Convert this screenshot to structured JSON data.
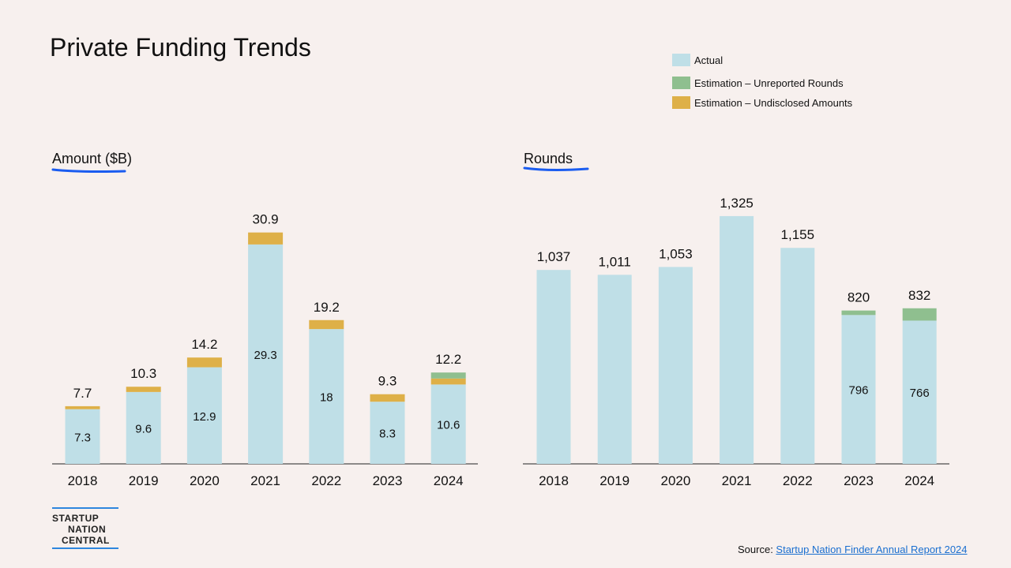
{
  "page_title": "Private Funding Trends",
  "legend": [
    {
      "label": "Actual",
      "color": "#bfdfe7"
    },
    {
      "label": "Estimation – Unreported  Rounds",
      "color": "#8fbf8f"
    },
    {
      "label": "Estimation – Undisclosed Amounts",
      "color": "#deb048"
    }
  ],
  "logo": {
    "line1": "STARTUP",
    "line2": "NATION",
    "line3": "CENTRAL"
  },
  "source": {
    "prefix": "Source: ",
    "link_text": "Startup Nation Finder Annual Report 2024"
  },
  "chart_data": [
    {
      "type": "bar",
      "stacked": true,
      "title": "Amount ($B)",
      "categories": [
        "2018",
        "2019",
        "2020",
        "2021",
        "2022",
        "2023",
        "2024"
      ],
      "series": [
        {
          "name": "Actual",
          "color": "#bfdfe7",
          "values": [
            7.3,
            9.6,
            12.9,
            29.3,
            18,
            8.3,
            10.6
          ]
        },
        {
          "name": "Estimation – Undisclosed Amounts",
          "color": "#deb048",
          "values": [
            0.4,
            0.7,
            1.3,
            1.6,
            1.2,
            1.0,
            0.8
          ]
        },
        {
          "name": "Estimation – Unreported  Rounds",
          "color": "#8fbf8f",
          "values": [
            0,
            0,
            0,
            0,
            0,
            0,
            0.8
          ]
        }
      ],
      "actual_labels": [
        "7.3",
        "9.6",
        "12.9",
        "29.3",
        "18",
        "8.3",
        "10.6"
      ],
      "total_labels": [
        "7.7",
        "10.3",
        "14.2",
        "30.9",
        "19.2",
        "9.3",
        "12.2"
      ],
      "ylim": [
        0,
        31.5
      ]
    },
    {
      "type": "bar",
      "stacked": true,
      "title": "Rounds",
      "categories": [
        "2018",
        "2019",
        "2020",
        "2021",
        "2022",
        "2023",
        "2024"
      ],
      "series": [
        {
          "name": "Actual",
          "color": "#bfdfe7",
          "values": [
            1037,
            1011,
            1053,
            1325,
            1155,
            796,
            766
          ]
        },
        {
          "name": "Estimation – Unreported  Rounds",
          "color": "#8fbf8f",
          "values": [
            0,
            0,
            0,
            0,
            0,
            24,
            66
          ]
        }
      ],
      "actual_labels": [
        "",
        "",
        "",
        "",
        "",
        "796",
        "766"
      ],
      "total_labels": [
        "1,037",
        "1,011",
        "1,053",
        "1,325",
        "1,155",
        "820",
        "832"
      ],
      "ylim": [
        0,
        1350
      ]
    }
  ]
}
